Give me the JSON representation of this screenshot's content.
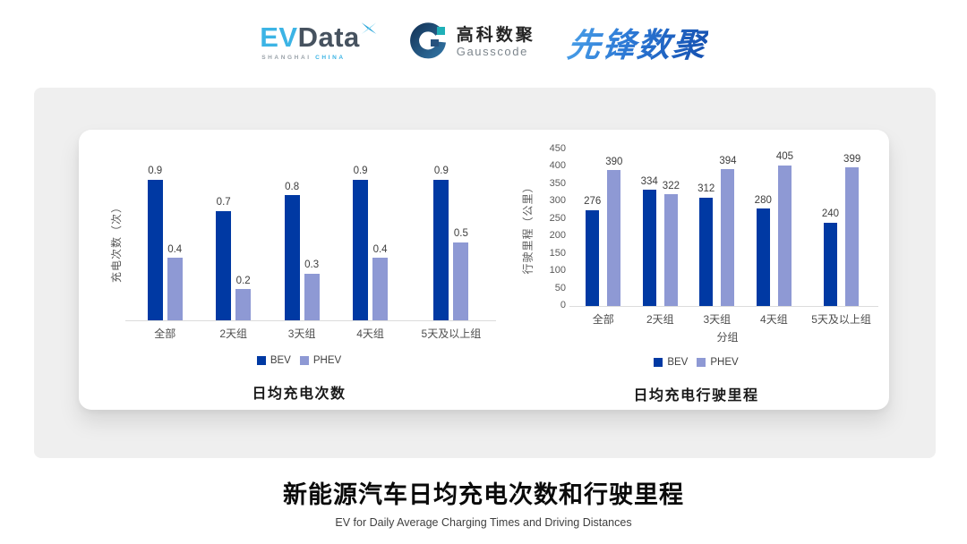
{
  "header": {
    "evdata": {
      "ev": "EV",
      "data": "Data",
      "sub_gray": "SHANGHAI",
      "sub_cyan": "CHINA",
      "star_icon": "four-point-star"
    },
    "gausscode": {
      "cn": "高科数聚",
      "en": "Gausscode",
      "mark_icon": "g-ring-mark"
    },
    "xianfeng": {
      "text": "先锋数聚"
    }
  },
  "chart_data": [
    {
      "type": "bar",
      "title": "日均充电次数",
      "xlabel": "",
      "ylabel": "充电次数（次）",
      "categories": [
        "全部",
        "2天组",
        "3天组",
        "4天组",
        "5天及以上组"
      ],
      "series": [
        {
          "name": "BEV",
          "color": "#0039a3",
          "values": [
            0.9,
            0.7,
            0.8,
            0.9,
            0.9
          ]
        },
        {
          "name": "PHEV",
          "color": "#8e99d4",
          "values": [
            0.4,
            0.2,
            0.3,
            0.4,
            0.5
          ]
        }
      ],
      "ylim": [
        0,
        1.0
      ],
      "yticks": [],
      "grid": false,
      "legend_position": "bottom"
    },
    {
      "type": "bar",
      "title": "日均充电行驶里程",
      "xlabel": "分组",
      "ylabel": "行驶里程（公里）",
      "categories": [
        "全部",
        "2天组",
        "3天组",
        "4天组",
        "5天及以上组"
      ],
      "series": [
        {
          "name": "BEV",
          "color": "#0039a3",
          "values": [
            276,
            334,
            312,
            280,
            240
          ]
        },
        {
          "name": "PHEV",
          "color": "#8e99d4",
          "values": [
            390,
            322,
            394,
            405,
            399
          ]
        }
      ],
      "ylim": [
        0,
        450
      ],
      "yticks": [
        0,
        50,
        100,
        150,
        200,
        250,
        300,
        350,
        400,
        450
      ],
      "grid": false,
      "legend_position": "bottom"
    }
  ],
  "footer": {
    "title_cn": "新能源汽车日均充电次数和行驶里程",
    "title_en": "EV for Daily Average Charging Times and Driving Distances"
  },
  "colors": {
    "bev": "#0039a3",
    "phev": "#8e99d4",
    "panel_bg": "#efefef",
    "card_bg": "#ffffff",
    "baseline": "#dcdcdc"
  }
}
